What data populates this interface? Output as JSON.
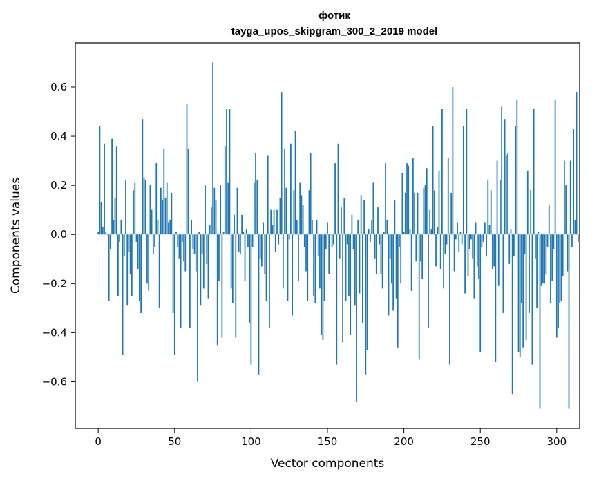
{
  "chart_data": {
    "type": "bar",
    "title": "фотик",
    "subtitle": "tayga_upos_skipgram_300_2_2019 model",
    "xlabel": "Vector components",
    "ylabel": "Components values",
    "xlim": [
      -15,
      315
    ],
    "ylim": [
      -0.79,
      0.78
    ],
    "xticks": [
      0,
      50,
      100,
      150,
      200,
      250,
      300
    ],
    "xtick_labels": [
      "0",
      "50",
      "100",
      "150",
      "200",
      "250",
      "300"
    ],
    "yticks": [
      -0.6,
      -0.4,
      -0.2,
      0.0,
      0.2,
      0.4,
      0.6
    ],
    "ytick_labels": [
      "−0.6",
      "−0.4",
      "−0.2",
      "0.0",
      "0.2",
      "0.4",
      "0.6"
    ],
    "bar_color": "#1f77b4",
    "grid": false,
    "values": [
      0.01,
      0.44,
      0.13,
      0.03,
      0.37,
      0.01,
      0.0,
      -0.27,
      -0.06,
      0.39,
      0.06,
      0.15,
      0.36,
      -0.25,
      -0.03,
      0.06,
      -0.49,
      -0.09,
      0.22,
      -0.29,
      -0.07,
      -0.16,
      -0.25,
      0.18,
      0.21,
      -0.03,
      -0.14,
      -0.27,
      -0.32,
      0.47,
      0.23,
      0.22,
      -0.2,
      -0.23,
      0.2,
      0.1,
      -0.08,
      -0.05,
      0.29,
      0.06,
      -0.3,
      0.19,
      0.14,
      0.35,
      0.15,
      0.21,
      0.05,
      0.06,
      0.17,
      -0.32,
      -0.49,
      0.01,
      -0.05,
      -0.1,
      -0.38,
      -0.03,
      -0.11,
      -0.15,
      0.53,
      0.35,
      -0.38,
      0.06,
      -0.06,
      -0.08,
      -0.15,
      -0.6,
      0.01,
      -0.29,
      -0.08,
      -0.22,
      0.2,
      -0.12,
      -0.26,
      0.04,
      0.11,
      0.7,
      0.19,
      0.14,
      -0.45,
      -0.19,
      0.2,
      -0.42,
      0.01,
      0.36,
      0.51,
      0.21,
      0.51,
      -0.22,
      -0.28,
      0.08,
      -0.42,
      0.19,
      -0.07,
      -0.08,
      0.08,
      0.01,
      -0.19,
      0.02,
      -0.05,
      -0.36,
      -0.53,
      -0.05,
      0.21,
      0.33,
      0.22,
      -0.57,
      -0.1,
      -0.13,
      0.05,
      -0.16,
      -0.27,
      0.32,
      -0.38,
      0.1,
      0.04,
      0.1,
      -0.07,
      0.1,
      -0.04,
      0.15,
      0.58,
      -0.22,
      0.35,
      0.19,
      -0.27,
      -0.02,
      0.37,
      -0.33,
      0.18,
      0.42,
      0.06,
      -0.19,
      0.21,
      0.16,
      0.12,
      -0.05,
      -0.15,
      -0.27,
      0.18,
      0.33,
      0.06,
      -0.25,
      -0.28,
      0.06,
      -0.09,
      -0.22,
      -0.41,
      -0.43,
      -0.27,
      -0.06,
      0.05,
      -0.16,
      0.0,
      -0.05,
      -0.04,
      0.29,
      -0.53,
      0.37,
      -0.1,
      0.11,
      -0.44,
      0.15,
      -0.27,
      -0.04,
      -0.25,
      -0.41,
      0.08,
      -0.06,
      -0.29,
      -0.68,
      0.06,
      -0.24,
      0.16,
      -0.36,
      0.14,
      -0.57,
      -0.47,
      0.02,
      -0.03,
      0.06,
      0.21,
      -0.1,
      -0.16,
      0.11,
      -0.04,
      -0.16,
      -0.22,
      0.01,
      0.29,
      0.06,
      -0.33,
      -0.1,
      -0.2,
      -0.31,
      0.14,
      -0.26,
      -0.46,
      -0.05,
      -0.2,
      0.25,
      0.01,
      0.17,
      0.29,
      0.28,
      0.02,
      -0.23,
      0.31,
      0.17,
      -0.11,
      0.17,
      -0.51,
      -0.11,
      -0.18,
      0.19,
      0.2,
      0.27,
      -0.38,
      0.1,
      0.02,
      0.44,
      0.18,
      -0.13,
      0.03,
      0.26,
      -0.14,
      0.51,
      -0.22,
      -0.08,
      -0.04,
      0.31,
      -0.53,
      0.17,
      0.6,
      -0.15,
      -0.02,
      0.05,
      -0.07,
      0.01,
      -0.04,
      0.44,
      -0.24,
      0.51,
      -0.17,
      -0.06,
      -0.02,
      -0.1,
      -0.26,
      0.05,
      -0.13,
      -0.18,
      -0.48,
      -0.05,
      -0.03,
      0.05,
      -0.09,
      0.22,
      0.04,
      0.18,
      -0.14,
      -0.13,
      -0.52,
      0.3,
      -0.21,
      0.22,
      0.52,
      -0.32,
      0.47,
      0.32,
      0.33,
      -0.12,
      0.02,
      -0.65,
      -0.09,
      0.44,
      0.55,
      -0.48,
      -0.5,
      -0.28,
      -0.46,
      -0.08,
      -0.43,
      0.26,
      -0.32,
      0.18,
      -0.53,
      0.51,
      -0.1,
      -0.3,
      0.01,
      -0.71,
      -0.21,
      -0.2,
      -0.2,
      -0.16,
      -0.05,
      0.12,
      -0.28,
      -0.19,
      -0.06,
      0.55,
      -0.42,
      -0.38,
      -0.28,
      -0.27,
      -0.17,
      0.3,
      0.2,
      -0.15,
      -0.71,
      0.3,
      -0.05,
      0.43,
      0.06,
      0.58,
      -0.03
    ]
  }
}
